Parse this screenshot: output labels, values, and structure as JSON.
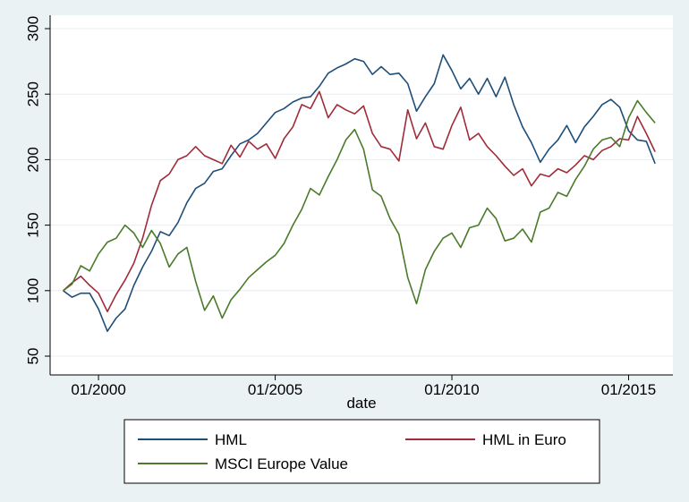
{
  "chart_data": {
    "type": "line",
    "title": "",
    "xlabel": "date",
    "ylabel": "",
    "ylim": [
      50,
      300
    ],
    "xlim": [
      "1998-11",
      "2016-01"
    ],
    "yticks": [
      50,
      100,
      150,
      200,
      250,
      300
    ],
    "xticks": [
      {
        "value": "2000-01",
        "label": "01/2000"
      },
      {
        "value": "2005-01",
        "label": "01/2005"
      },
      {
        "value": "2010-01",
        "label": "01/2010"
      },
      {
        "value": "2015-01",
        "label": "01/2015"
      }
    ],
    "grid": "horizontal",
    "legend": "bottom",
    "series": [
      {
        "name": "HML",
        "color": "#1f4e79",
        "points": [
          [
            "1999-01",
            100
          ],
          [
            "1999-04",
            95
          ],
          [
            "1999-07",
            98
          ],
          [
            "1999-10",
            98
          ],
          [
            "2000-01",
            86
          ],
          [
            "2000-04",
            69
          ],
          [
            "2000-07",
            79
          ],
          [
            "2000-10",
            86
          ],
          [
            "2001-01",
            104
          ],
          [
            "2001-04",
            118
          ],
          [
            "2001-07",
            130
          ],
          [
            "2001-10",
            145
          ],
          [
            "2002-01",
            142
          ],
          [
            "2002-04",
            152
          ],
          [
            "2002-07",
            167
          ],
          [
            "2002-10",
            178
          ],
          [
            "2003-01",
            182
          ],
          [
            "2003-04",
            191
          ],
          [
            "2003-07",
            193
          ],
          [
            "2003-10",
            203
          ],
          [
            "2004-01",
            212
          ],
          [
            "2004-04",
            215
          ],
          [
            "2004-07",
            220
          ],
          [
            "2004-10",
            228
          ],
          [
            "2005-01",
            236
          ],
          [
            "2005-04",
            239
          ],
          [
            "2005-07",
            244
          ],
          [
            "2005-10",
            247
          ],
          [
            "2006-01",
            248
          ],
          [
            "2006-04",
            256
          ],
          [
            "2006-07",
            266
          ],
          [
            "2006-10",
            270
          ],
          [
            "2007-01",
            273
          ],
          [
            "2007-04",
            277
          ],
          [
            "2007-07",
            275
          ],
          [
            "2007-10",
            265
          ],
          [
            "2008-01",
            271
          ],
          [
            "2008-04",
            265
          ],
          [
            "2008-07",
            266
          ],
          [
            "2008-10",
            258
          ],
          [
            "2009-01",
            237
          ],
          [
            "2009-04",
            248
          ],
          [
            "2009-07",
            258
          ],
          [
            "2009-10",
            280
          ],
          [
            "2010-01",
            268
          ],
          [
            "2010-04",
            254
          ],
          [
            "2010-07",
            262
          ],
          [
            "2010-10",
            250
          ],
          [
            "2011-01",
            262
          ],
          [
            "2011-04",
            248
          ],
          [
            "2011-07",
            263
          ],
          [
            "2011-10",
            242
          ],
          [
            "2012-01",
            225
          ],
          [
            "2012-04",
            213
          ],
          [
            "2012-07",
            198
          ],
          [
            "2012-10",
            208
          ],
          [
            "2013-01",
            215
          ],
          [
            "2013-04",
            226
          ],
          [
            "2013-07",
            213
          ],
          [
            "2013-10",
            225
          ],
          [
            "2014-01",
            233
          ],
          [
            "2014-04",
            242
          ],
          [
            "2014-07",
            246
          ],
          [
            "2014-10",
            240
          ],
          [
            "2015-01",
            222
          ],
          [
            "2015-04",
            215
          ],
          [
            "2015-07",
            214
          ],
          [
            "2015-10",
            197
          ]
        ]
      },
      {
        "name": "HML in Euro",
        "color": "#a02b3a",
        "points": [
          [
            "1999-01",
            100
          ],
          [
            "1999-04",
            106
          ],
          [
            "1999-07",
            111
          ],
          [
            "1999-10",
            104
          ],
          [
            "2000-01",
            98
          ],
          [
            "2000-04",
            84
          ],
          [
            "2000-07",
            97
          ],
          [
            "2000-10",
            108
          ],
          [
            "2001-01",
            121
          ],
          [
            "2001-04",
            140
          ],
          [
            "2001-07",
            165
          ],
          [
            "2001-10",
            184
          ],
          [
            "2002-01",
            189
          ],
          [
            "2002-04",
            200
          ],
          [
            "2002-07",
            203
          ],
          [
            "2002-10",
            210
          ],
          [
            "2003-01",
            203
          ],
          [
            "2003-04",
            200
          ],
          [
            "2003-07",
            197
          ],
          [
            "2003-10",
            211
          ],
          [
            "2004-01",
            202
          ],
          [
            "2004-04",
            214
          ],
          [
            "2004-07",
            208
          ],
          [
            "2004-10",
            212
          ],
          [
            "2005-01",
            201
          ],
          [
            "2005-04",
            216
          ],
          [
            "2005-07",
            225
          ],
          [
            "2005-10",
            242
          ],
          [
            "2006-01",
            239
          ],
          [
            "2006-04",
            252
          ],
          [
            "2006-07",
            232
          ],
          [
            "2006-10",
            242
          ],
          [
            "2007-01",
            238
          ],
          [
            "2007-04",
            235
          ],
          [
            "2007-07",
            241
          ],
          [
            "2007-10",
            220
          ],
          [
            "2008-01",
            210
          ],
          [
            "2008-04",
            208
          ],
          [
            "2008-07",
            199
          ],
          [
            "2008-10",
            238
          ],
          [
            "2009-01",
            216
          ],
          [
            "2009-04",
            228
          ],
          [
            "2009-07",
            210
          ],
          [
            "2009-10",
            208
          ],
          [
            "2010-01",
            226
          ],
          [
            "2010-04",
            240
          ],
          [
            "2010-07",
            215
          ],
          [
            "2010-10",
            220
          ],
          [
            "2011-01",
            210
          ],
          [
            "2011-04",
            203
          ],
          [
            "2011-07",
            195
          ],
          [
            "2011-10",
            188
          ],
          [
            "2012-01",
            193
          ],
          [
            "2012-04",
            180
          ],
          [
            "2012-07",
            189
          ],
          [
            "2012-10",
            187
          ],
          [
            "2013-01",
            193
          ],
          [
            "2013-04",
            190
          ],
          [
            "2013-07",
            196
          ],
          [
            "2013-10",
            203
          ],
          [
            "2014-01",
            200
          ],
          [
            "2014-04",
            207
          ],
          [
            "2014-07",
            210
          ],
          [
            "2014-10",
            216
          ],
          [
            "2015-01",
            215
          ],
          [
            "2015-04",
            233
          ],
          [
            "2015-07",
            220
          ],
          [
            "2015-10",
            206
          ]
        ]
      },
      {
        "name": "MSCI Europe Value",
        "color": "#4b7a2b",
        "points": [
          [
            "1999-01",
            100
          ],
          [
            "1999-04",
            105
          ],
          [
            "1999-07",
            119
          ],
          [
            "1999-10",
            115
          ],
          [
            "2000-01",
            128
          ],
          [
            "2000-04",
            137
          ],
          [
            "2000-07",
            140
          ],
          [
            "2000-10",
            150
          ],
          [
            "2001-01",
            144
          ],
          [
            "2001-04",
            133
          ],
          [
            "2001-07",
            146
          ],
          [
            "2001-10",
            136
          ],
          [
            "2002-01",
            118
          ],
          [
            "2002-04",
            128
          ],
          [
            "2002-07",
            133
          ],
          [
            "2002-10",
            107
          ],
          [
            "2003-01",
            85
          ],
          [
            "2003-04",
            96
          ],
          [
            "2003-07",
            79
          ],
          [
            "2003-10",
            93
          ],
          [
            "2004-01",
            101
          ],
          [
            "2004-04",
            110
          ],
          [
            "2004-07",
            116
          ],
          [
            "2004-10",
            122
          ],
          [
            "2005-01",
            127
          ],
          [
            "2005-04",
            136
          ],
          [
            "2005-07",
            150
          ],
          [
            "2005-10",
            162
          ],
          [
            "2006-01",
            178
          ],
          [
            "2006-04",
            173
          ],
          [
            "2006-07",
            187
          ],
          [
            "2006-10",
            200
          ],
          [
            "2007-01",
            215
          ],
          [
            "2007-04",
            223
          ],
          [
            "2007-07",
            208
          ],
          [
            "2007-10",
            177
          ],
          [
            "2008-01",
            172
          ],
          [
            "2008-04",
            155
          ],
          [
            "2008-07",
            143
          ],
          [
            "2008-10",
            110
          ],
          [
            "2009-01",
            90
          ],
          [
            "2009-04",
            116
          ],
          [
            "2009-07",
            130
          ],
          [
            "2009-10",
            140
          ],
          [
            "2010-01",
            144
          ],
          [
            "2010-04",
            133
          ],
          [
            "2010-07",
            148
          ],
          [
            "2010-10",
            150
          ],
          [
            "2011-01",
            163
          ],
          [
            "2011-04",
            155
          ],
          [
            "2011-07",
            138
          ],
          [
            "2011-10",
            140
          ],
          [
            "2012-01",
            147
          ],
          [
            "2012-04",
            137
          ],
          [
            "2012-07",
            160
          ],
          [
            "2012-10",
            163
          ],
          [
            "2013-01",
            175
          ],
          [
            "2013-04",
            172
          ],
          [
            "2013-07",
            185
          ],
          [
            "2013-10",
            195
          ],
          [
            "2014-01",
            208
          ],
          [
            "2014-04",
            215
          ],
          [
            "2014-07",
            217
          ],
          [
            "2014-10",
            210
          ],
          [
            "2015-01",
            232
          ],
          [
            "2015-04",
            245
          ],
          [
            "2015-07",
            236
          ],
          [
            "2015-10",
            228
          ]
        ]
      }
    ]
  }
}
